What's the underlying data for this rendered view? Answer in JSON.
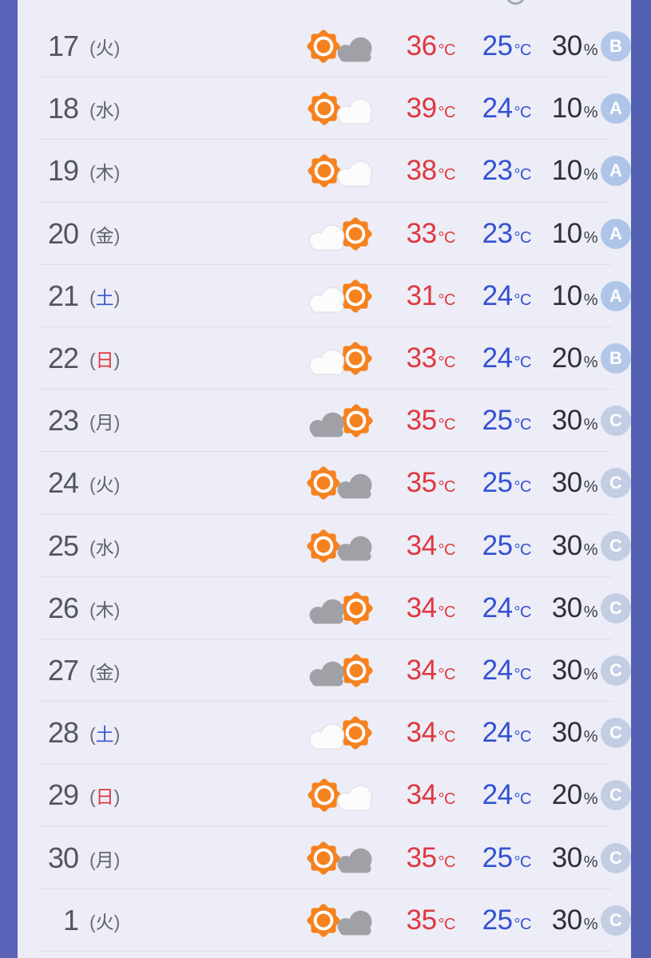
{
  "page": {
    "background": "#ECEDF7",
    "side_bar_color": "#5A63B7",
    "separator_color": "#DDDEE9"
  },
  "labels": {
    "paren_open": "(",
    "paren_close": ")"
  },
  "forecast": {
    "units": {
      "temp": "°C",
      "pop": "%"
    },
    "grade_colors": {
      "A": "#AEC5E8",
      "B": "#B3C8E8",
      "C": "#C3CDE3"
    },
    "rows": [
      {
        "date": "17",
        "day": "火",
        "day_type": "weekday",
        "weather": "sunny-then-cloudy",
        "weather_icon": [
          "sun",
          "cloud-gray"
        ],
        "high": "36",
        "low": "25",
        "pop": "30",
        "grade": "B"
      },
      {
        "date": "18",
        "day": "水",
        "day_type": "weekday",
        "weather": "sunny-partly-cloudy",
        "weather_icon": [
          "sun",
          "cloud-white"
        ],
        "high": "39",
        "low": "24",
        "pop": "10",
        "grade": "A"
      },
      {
        "date": "19",
        "day": "木",
        "day_type": "weekday",
        "weather": "sunny-partly-cloudy",
        "weather_icon": [
          "sun",
          "cloud-white"
        ],
        "high": "38",
        "low": "23",
        "pop": "10",
        "grade": "A"
      },
      {
        "date": "20",
        "day": "金",
        "day_type": "weekday",
        "weather": "partly-cloudy-then-sunny",
        "weather_icon": [
          "cloud-white",
          "sun"
        ],
        "high": "33",
        "low": "23",
        "pop": "10",
        "grade": "A"
      },
      {
        "date": "21",
        "day": "土",
        "day_type": "saturday",
        "weather": "partly-cloudy-then-sunny",
        "weather_icon": [
          "cloud-white",
          "sun"
        ],
        "high": "31",
        "low": "24",
        "pop": "10",
        "grade": "A"
      },
      {
        "date": "22",
        "day": "日",
        "day_type": "sunday",
        "weather": "partly-cloudy-then-sunny",
        "weather_icon": [
          "cloud-white",
          "sun"
        ],
        "high": "33",
        "low": "24",
        "pop": "20",
        "grade": "B"
      },
      {
        "date": "23",
        "day": "月",
        "day_type": "weekday",
        "weather": "cloudy-then-sunny",
        "weather_icon": [
          "cloud-gray",
          "sun"
        ],
        "high": "35",
        "low": "25",
        "pop": "30",
        "grade": "C"
      },
      {
        "date": "24",
        "day": "火",
        "day_type": "weekday",
        "weather": "sunny-then-cloudy",
        "weather_icon": [
          "sun",
          "cloud-gray"
        ],
        "high": "35",
        "low": "25",
        "pop": "30",
        "grade": "C"
      },
      {
        "date": "25",
        "day": "水",
        "day_type": "weekday",
        "weather": "sunny-then-cloudy",
        "weather_icon": [
          "sun",
          "cloud-gray"
        ],
        "high": "34",
        "low": "25",
        "pop": "30",
        "grade": "C"
      },
      {
        "date": "26",
        "day": "木",
        "day_type": "weekday",
        "weather": "cloudy-then-sunny",
        "weather_icon": [
          "cloud-gray",
          "sun"
        ],
        "high": "34",
        "low": "24",
        "pop": "30",
        "grade": "C"
      },
      {
        "date": "27",
        "day": "金",
        "day_type": "weekday",
        "weather": "cloudy-then-sunny",
        "weather_icon": [
          "cloud-gray",
          "sun"
        ],
        "high": "34",
        "low": "24",
        "pop": "30",
        "grade": "C"
      },
      {
        "date": "28",
        "day": "土",
        "day_type": "saturday",
        "weather": "partly-cloudy-then-sunny",
        "weather_icon": [
          "cloud-white",
          "sun"
        ],
        "high": "34",
        "low": "24",
        "pop": "30",
        "grade": "C"
      },
      {
        "date": "29",
        "day": "日",
        "day_type": "sunday",
        "weather": "sunny-partly-cloudy",
        "weather_icon": [
          "sun",
          "cloud-white"
        ],
        "high": "34",
        "low": "24",
        "pop": "20",
        "grade": "C"
      },
      {
        "date": "30",
        "day": "月",
        "day_type": "weekday",
        "weather": "sunny-then-cloudy",
        "weather_icon": [
          "sun",
          "cloud-gray"
        ],
        "high": "35",
        "low": "25",
        "pop": "30",
        "grade": "C"
      },
      {
        "date": "1",
        "day": "火",
        "day_type": "weekday",
        "weather": "sunny-then-cloudy",
        "weather_icon": [
          "sun",
          "cloud-gray"
        ],
        "high": "35",
        "low": "25",
        "pop": "30",
        "grade": "C"
      }
    ]
  }
}
